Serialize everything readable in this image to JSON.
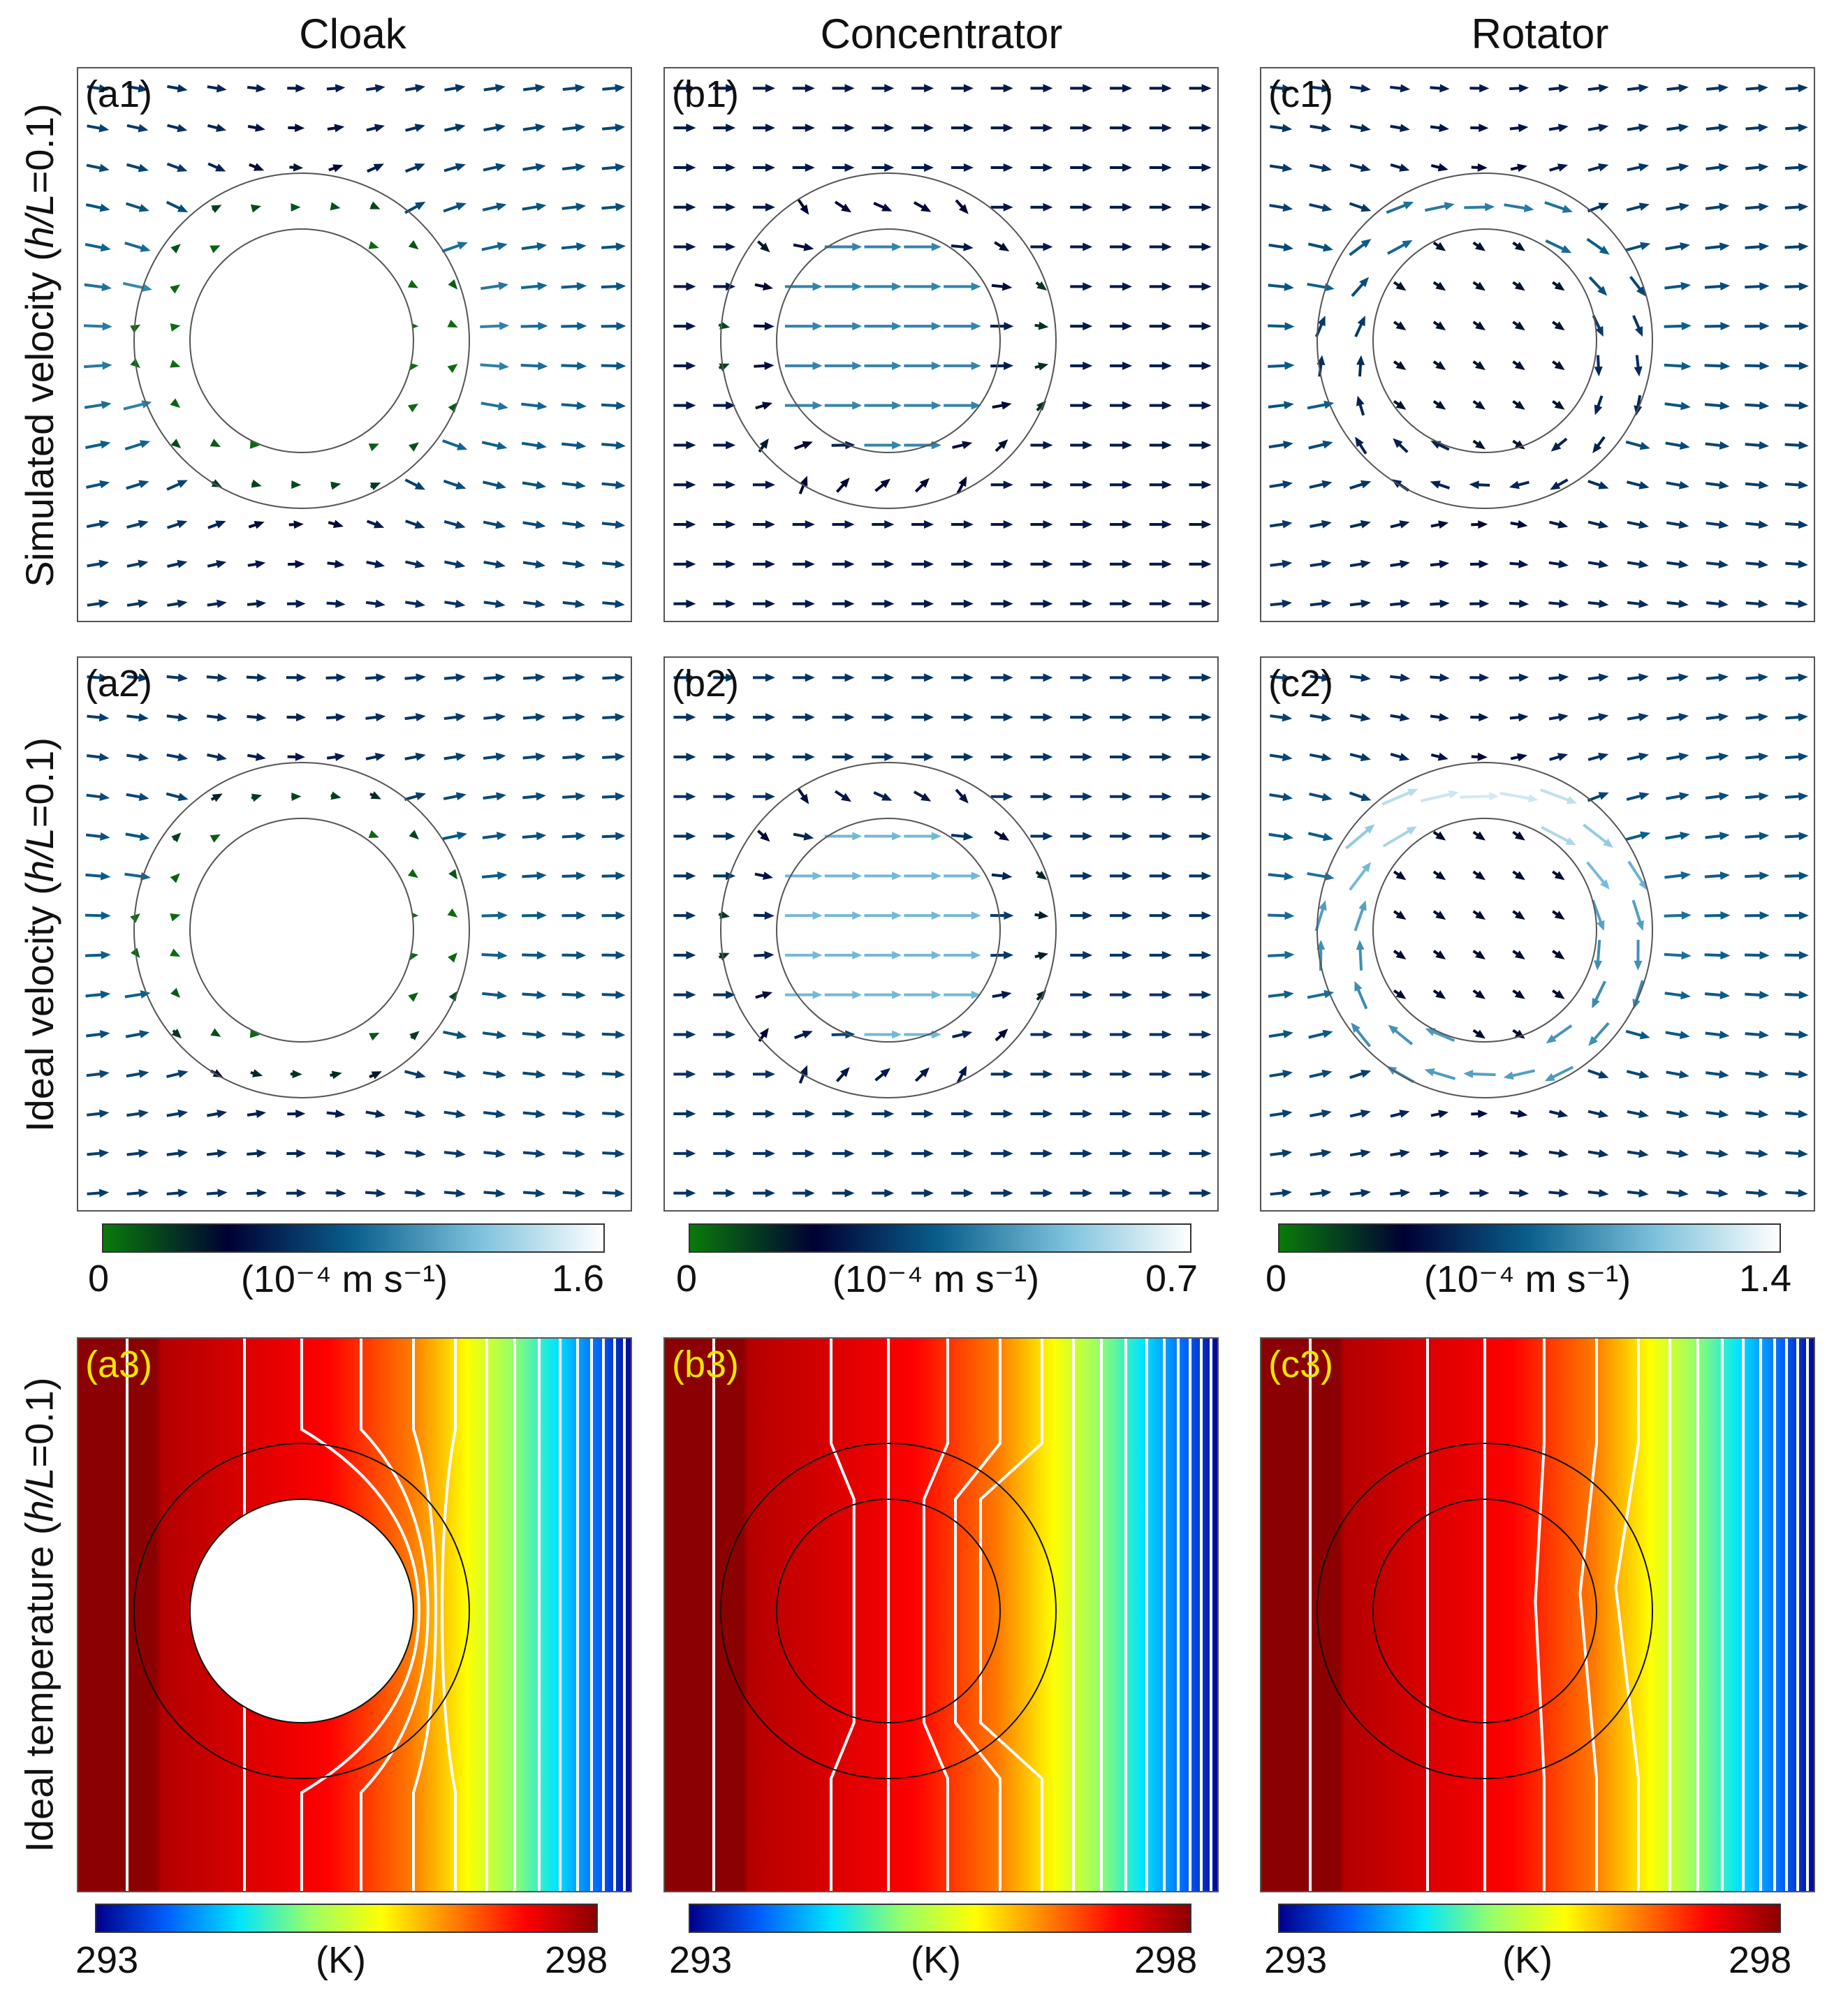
{
  "columns": [
    "Cloak",
    "Concentrator",
    "Rotator"
  ],
  "rows": [
    {
      "label_prefix": "Simulated velocity (",
      "label_var": "h/L",
      "label_suffix": "=0.1)"
    },
    {
      "label_prefix": "Ideal velocity (",
      "label_var": "h/L",
      "label_suffix": "=0.1)"
    },
    {
      "label_prefix": "Ideal temperature (",
      "label_var": "h/L",
      "label_suffix": "=0.1)"
    }
  ],
  "panels": {
    "a1": "(a1)",
    "b1": "(b1)",
    "c1": "(c1)",
    "a2": "(a2)",
    "b2": "(b2)",
    "c2": "(c2)",
    "a3": "(a3)",
    "b3": "(b3)",
    "c3": "(c3)"
  },
  "velocity_colorbars": [
    {
      "min": "0",
      "max": "1.6",
      "unit": "(10⁻⁴ m s⁻¹)"
    },
    {
      "min": "0",
      "max": "0.7",
      "unit": "(10⁻⁴ m s⁻¹)"
    },
    {
      "min": "0",
      "max": "1.4",
      "unit": "(10⁻⁴ m s⁻¹)"
    }
  ],
  "temperature_colorbars": [
    {
      "min": "293",
      "max": "298",
      "unit": "(K)"
    },
    {
      "min": "293",
      "max": "298",
      "unit": "(K)"
    },
    {
      "min": "293",
      "max": "298",
      "unit": "(K)"
    }
  ],
  "colors": {
    "velocity_map": [
      "#0a7a0a",
      "#000033",
      "#0a5f8c",
      "#7cc1dc",
      "#ffffff"
    ],
    "temperature_map": [
      "#00008b",
      "#0060ff",
      "#00e5ff",
      "#9aff66",
      "#ffff00",
      "#ff8000",
      "#ff0000",
      "#8b0000"
    ],
    "panel_label_dark": "#111111",
    "panel_label_light": "#f2e600",
    "isotherm": "#ffffff"
  },
  "devices": {
    "cloak": {
      "inner_radius_ratio": 0.67,
      "hollow_core": true
    },
    "concentrator": {
      "inner_radius_ratio": 0.67,
      "hollow_core": false
    },
    "rotator": {
      "inner_radius_ratio": 0.67,
      "rotation_deg": 35
    }
  }
}
